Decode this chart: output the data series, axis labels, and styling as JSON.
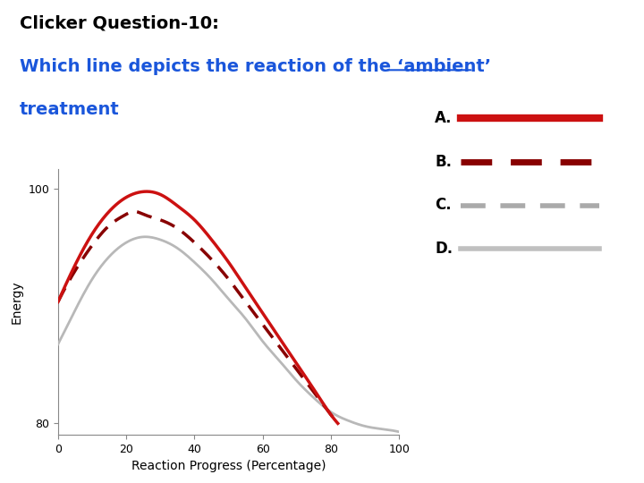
{
  "title_line1": "Clicker Question-10:",
  "title_line2_pre": "Which line depicts the reaction of the ",
  "title_line2_ambient": "‘ambient’",
  "title_line3": "treatment",
  "title_color_black": "#000000",
  "title_color_blue": "#1a56db",
  "background_color": "#ffffff",
  "xlabel": "Reaction Progress (Percentage)",
  "ylabel": "Energy",
  "xticks": [
    0,
    20,
    40,
    60,
    80,
    100
  ],
  "ytick_bottom_label": "80",
  "ytick_top_label": "100",
  "curve_A_color": "#cc1111",
  "curve_A_lw": 2.5,
  "curve_A_x": [
    0,
    5,
    10,
    15,
    20,
    25,
    30,
    35,
    40,
    45,
    50,
    55,
    60,
    65,
    70,
    75,
    80,
    82
  ],
  "curve_A_y": [
    55,
    68,
    79,
    87,
    92,
    94,
    93,
    89,
    84,
    77,
    69,
    60,
    51,
    42,
    33,
    24,
    15,
    12
  ],
  "curve_B_color": "#880000",
  "curve_B_lw": 2.5,
  "curve_B_x": [
    0,
    5,
    10,
    15,
    20,
    22,
    25,
    30,
    35,
    40,
    45,
    50,
    55,
    60,
    65,
    70,
    75,
    80,
    82
  ],
  "curve_B_y": [
    55,
    66,
    75,
    82,
    86,
    87,
    86,
    84,
    81,
    76,
    70,
    63,
    55,
    47,
    39,
    31,
    23,
    15,
    12
  ],
  "curve_D_color": "#b8b8b8",
  "curve_D_lw": 2.0,
  "curve_D_x": [
    0,
    5,
    10,
    15,
    20,
    25,
    30,
    35,
    40,
    45,
    50,
    55,
    60,
    65,
    70,
    75,
    80,
    85,
    90,
    95,
    100
  ],
  "curve_D_y": [
    40,
    52,
    63,
    71,
    76,
    78,
    77,
    74,
    69,
    63,
    56,
    49,
    41,
    34,
    27,
    21,
    16,
    13,
    11,
    10,
    9
  ],
  "legend_A_color": "#cc1111",
  "legend_B_color": "#880000",
  "legend_C_color": "#aaaaaa",
  "legend_D_color": "#c0c0c0",
  "ylim_bottom": 8,
  "ylim_top": 100
}
